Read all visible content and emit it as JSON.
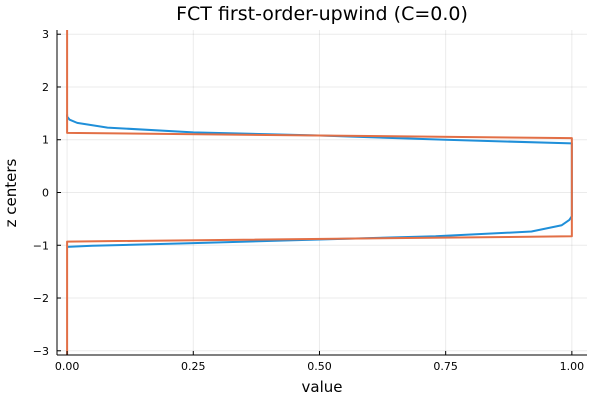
{
  "chart_data": {
    "type": "line",
    "title": "FCT first-order-upwind (C=0.0)",
    "xlabel": "value",
    "ylabel": "z centers",
    "xlim": [
      -0.02,
      1.03
    ],
    "ylim": [
      -3.08,
      3.08
    ],
    "x_ticks": [
      0.0,
      0.25,
      0.5,
      0.75,
      1.0
    ],
    "x_tick_labels": [
      "0.00",
      "0.25",
      "0.50",
      "0.75",
      "1.00"
    ],
    "y_ticks": [
      -3,
      -2,
      -1,
      0,
      1,
      2,
      3
    ],
    "y_tick_labels": [
      "−3",
      "−2",
      "−1",
      "0",
      "1",
      "2",
      "3"
    ],
    "grid": true,
    "legend": "none",
    "series": [
      {
        "color": "#1f8fd9",
        "points": [
          [
            0.0,
            1.48
          ],
          [
            0.0,
            1.44
          ],
          [
            0.005,
            1.38
          ],
          [
            0.02,
            1.32
          ],
          [
            0.08,
            1.23
          ],
          [
            0.25,
            1.14
          ],
          [
            0.5,
            1.08
          ],
          [
            0.75,
            1.0
          ],
          [
            1.0,
            0.93
          ],
          [
            1.0,
            0.9
          ],
          [
            1.0,
            -0.45
          ],
          [
            0.995,
            -0.52
          ],
          [
            0.98,
            -0.62
          ],
          [
            0.92,
            -0.74
          ],
          [
            0.73,
            -0.83
          ],
          [
            0.5,
            -0.89
          ],
          [
            0.25,
            -0.96
          ],
          [
            0.05,
            -1.01
          ],
          [
            0.0,
            -1.03
          ]
        ]
      },
      {
        "color": "#e26f46",
        "points": [
          [
            0.0,
            3.08
          ],
          [
            0.0,
            1.13
          ],
          [
            1.0,
            1.03
          ],
          [
            1.0,
            -0.83
          ],
          [
            0.0,
            -0.93
          ],
          [
            0.0,
            -3.08
          ]
        ]
      }
    ]
  }
}
